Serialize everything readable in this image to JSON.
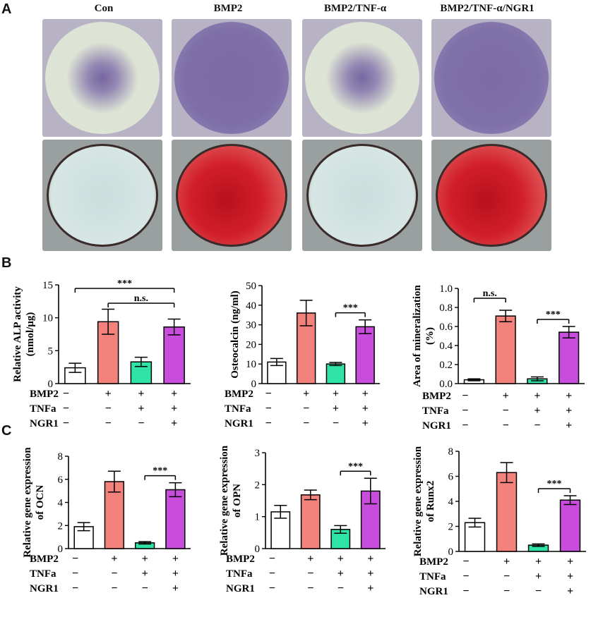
{
  "panel_labels": {
    "a": "A",
    "b": "B",
    "c": "C"
  },
  "photo_columns": [
    "Con",
    "BMP2",
    "BMP2/TNF-α",
    "BMP2/TNF-α/NGR1"
  ],
  "colors": {
    "con": "#ffffff",
    "bmp2": "#f4827c",
    "tnf": "#2fe2a6",
    "ngr1": "#c94ddd",
    "alp_stain_bg": "#e4ecd8",
    "alp_stain": "#6b5a9a",
    "ars_bg": "#c9dedd",
    "ars": "#d21f2a"
  },
  "chart_data": [
    {
      "id": "alp",
      "type": "bar",
      "ylabel": "Relative ALP activity (nmol/μg)",
      "ylim": [
        0,
        15
      ],
      "ticks": [
        0,
        5,
        10,
        15
      ],
      "values": [
        2.4,
        9.4,
        3.3,
        8.6
      ],
      "errors": [
        0.7,
        1.9,
        0.7,
        1.2
      ],
      "annotations": [
        {
          "from": 0,
          "to": 3,
          "text": "***"
        },
        {
          "from": 1,
          "to": 3,
          "text": "n.s."
        }
      ]
    },
    {
      "id": "ocn_prot",
      "type": "bar",
      "ylabel": "Osteocalcin (ng/ml)",
      "ylim": [
        0,
        50
      ],
      "ticks": [
        0,
        10,
        20,
        30,
        40,
        50
      ],
      "values": [
        11,
        36,
        10,
        29
      ],
      "errors": [
        1.8,
        6.5,
        0.8,
        3.5
      ],
      "annotations": [
        {
          "from": 2,
          "to": 3,
          "text": "***"
        }
      ]
    },
    {
      "id": "mineral",
      "type": "bar",
      "ylabel": "Area of mineralization (%)",
      "ylim": [
        0,
        1.0
      ],
      "ticks": [
        0.0,
        0.2,
        0.4,
        0.6,
        0.8,
        1.0
      ],
      "values": [
        0.04,
        0.71,
        0.05,
        0.54
      ],
      "errors": [
        0.01,
        0.06,
        0.02,
        0.06
      ],
      "annotations": [
        {
          "from": 0,
          "to": 1,
          "text": "n.s."
        },
        {
          "from": 2,
          "to": 3,
          "text": "***"
        }
      ]
    },
    {
      "id": "ocn",
      "type": "bar",
      "ylabel": "Relative gene expression of OCN",
      "ylim": [
        0,
        8
      ],
      "ticks": [
        0,
        2,
        4,
        6,
        8
      ],
      "values": [
        1.9,
        5.8,
        0.5,
        5.1
      ],
      "errors": [
        0.35,
        0.9,
        0.1,
        0.6
      ],
      "annotations": [
        {
          "from": 2,
          "to": 3,
          "text": "***"
        }
      ]
    },
    {
      "id": "opn",
      "type": "bar",
      "ylabel": "Relative gene expression of OPN",
      "ylim": [
        0,
        3
      ],
      "ticks": [
        0,
        1,
        2,
        3
      ],
      "values": [
        1.15,
        1.68,
        0.6,
        1.8
      ],
      "errors": [
        0.2,
        0.15,
        0.12,
        0.4
      ],
      "annotations": [
        {
          "from": 2,
          "to": 3,
          "text": "***"
        }
      ]
    },
    {
      "id": "runx2",
      "type": "bar",
      "ylabel": "Relative gene expression of Runx2",
      "ylim": [
        0,
        8
      ],
      "ticks": [
        0,
        2,
        4,
        6,
        8
      ],
      "values": [
        2.3,
        6.3,
        0.5,
        4.1
      ],
      "errors": [
        0.35,
        0.8,
        0.1,
        0.35
      ],
      "annotations": [
        {
          "from": 2,
          "to": 3,
          "text": "***"
        }
      ]
    }
  ],
  "treatment_rows": [
    {
      "label": "BMP2",
      "signs": [
        "−",
        "+",
        "+",
        "+"
      ]
    },
    {
      "label": "TNFa",
      "signs": [
        "−",
        "−",
        "+",
        "+"
      ]
    },
    {
      "label": "NGR1",
      "signs": [
        "−",
        "−",
        "−",
        "+"
      ]
    }
  ]
}
